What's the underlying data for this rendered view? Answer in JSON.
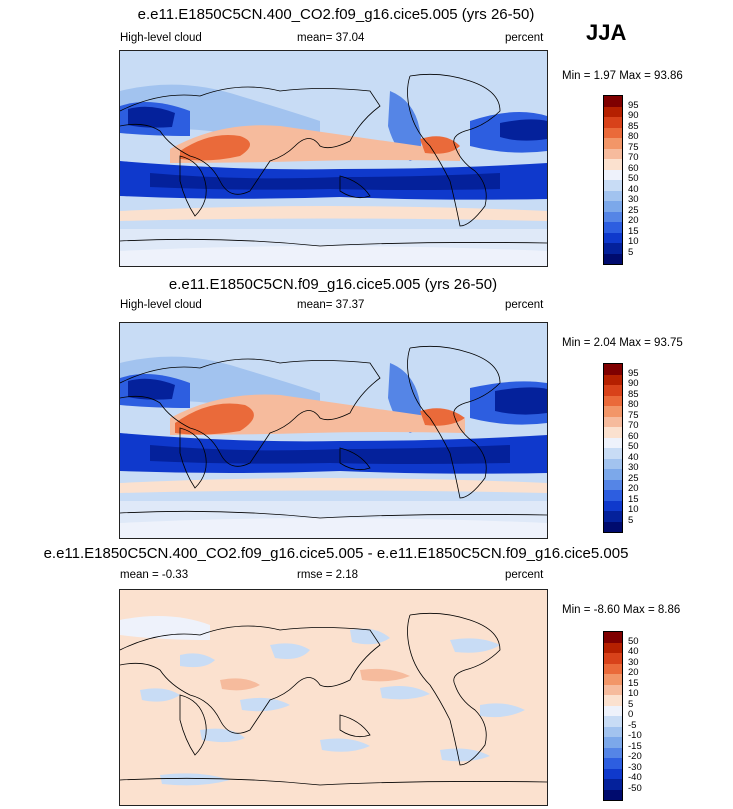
{
  "season": "JJA",
  "panels": [
    {
      "title": "e.e11.E1850C5CN.400_CO2.f09_g16.cice5.005 (yrs 26-50)",
      "left_label": "High-level cloud",
      "center_label": "mean=  37.04",
      "right_label": "percent",
      "minmax": "Min =   1.97 Max =  93.86",
      "levels": [
        "95",
        "90",
        "85",
        "80",
        "75",
        "70",
        "60",
        "50",
        "40",
        "30",
        "25",
        "20",
        "15",
        "10",
        "5"
      ],
      "colors": [
        "#7f0000",
        "#b52000",
        "#d8421a",
        "#ea6a3a",
        "#f29668",
        "#f6bb9d",
        "#fbe1cf",
        "#eef2fb",
        "#c8dcf5",
        "#a2c3ef",
        "#7ca8ea",
        "#5585e6",
        "#2d5ee0",
        "#0f39cc",
        "#04219b",
        "#000b6e"
      ]
    },
    {
      "title": "e.e11.E1850C5CN.f09_g16.cice5.005 (yrs 26-50)",
      "left_label": "High-level cloud",
      "center_label": "mean=  37.37",
      "right_label": "percent",
      "minmax": "Min =   2.04 Max =  93.75",
      "levels": [
        "95",
        "90",
        "85",
        "80",
        "75",
        "70",
        "60",
        "50",
        "40",
        "30",
        "25",
        "20",
        "15",
        "10",
        "5"
      ],
      "colors": [
        "#7f0000",
        "#b52000",
        "#d8421a",
        "#ea6a3a",
        "#f29668",
        "#f6bb9d",
        "#fbe1cf",
        "#eef2fb",
        "#c8dcf5",
        "#a2c3ef",
        "#7ca8ea",
        "#5585e6",
        "#2d5ee0",
        "#0f39cc",
        "#04219b",
        "#000b6e"
      ]
    },
    {
      "title": "e.e11.E1850C5CN.400_CO2.f09_g16.cice5.005 - e.e11.E1850C5CN.f09_g16.cice5.005",
      "left_label": "mean =  -0.33",
      "center_label": "rmse =   2.18",
      "right_label": "percent",
      "minmax": "Min =  -8.60 Max =   8.86",
      "levels": [
        "50",
        "40",
        "30",
        "20",
        "15",
        "10",
        "5",
        "0",
        "-5",
        "-10",
        "-15",
        "-20",
        "-30",
        "-40",
        "-50"
      ],
      "colors": [
        "#7f0000",
        "#b52000",
        "#d8421a",
        "#ea6a3a",
        "#f29668",
        "#f6bb9d",
        "#fbe1cf",
        "#eef2fb",
        "#c8dcf5",
        "#a2c3ef",
        "#7ca8ea",
        "#5585e6",
        "#2d5ee0",
        "#0f39cc",
        "#04219b",
        "#000b6e"
      ]
    }
  ]
}
